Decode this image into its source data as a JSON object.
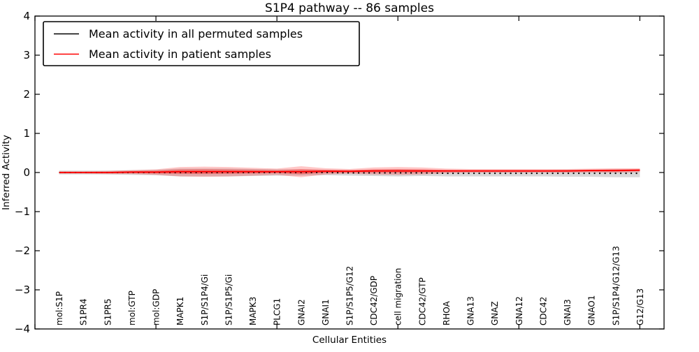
{
  "figure": {
    "background": "#ffffff",
    "accent_red": "#ff0000",
    "accent_black": "#000000"
  },
  "legend": {
    "items": [
      {
        "label": "Mean activity in all permuted samples",
        "color": "#000000",
        "style": "solid"
      },
      {
        "label": "Mean activity in patient samples",
        "color": "#ff0000",
        "style": "solid"
      }
    ],
    "position": "upper left"
  },
  "chart_data": {
    "type": "line",
    "title": "S1P4 pathway -- 86 samples",
    "xlabel": "Cellular Entities",
    "ylabel": "Inferred Activity",
    "xlim": [
      0,
      26
    ],
    "ylim": [
      -4,
      4
    ],
    "ytick_values": [
      4,
      3,
      2,
      1,
      0,
      -1,
      -2,
      -3,
      -4
    ],
    "ytick_labels": [
      "4",
      "3",
      "2",
      "1",
      "0",
      "−1",
      "−2",
      "−3",
      "−4"
    ],
    "xtick_values": [
      0,
      5,
      10,
      15,
      20,
      25
    ],
    "grid": false,
    "legend_position": "upper left",
    "categories": [
      "mol:S1P",
      "S1PR4",
      "S1PR5",
      "mol:GTP",
      "mol:GDP",
      "MAPK1",
      "S1P/S1P4/Gi",
      "S1P/S1P5/Gi",
      "MAPK3",
      "PLCG1",
      "GNAI2",
      "GNAI1",
      "S1P/S1P5/G12",
      "CDC42/GDP",
      "cell migration",
      "CDC42/GTP",
      "RHOA",
      "GNA13",
      "GNAZ",
      "GNA12",
      "CDC42",
      "GNAI3",
      "GNAO1",
      "S1P/S1P4/G12/G13",
      "G12/G13"
    ],
    "series": [
      {
        "name": "Mean activity in all permuted samples",
        "color": "#000000",
        "line_style": "dotted",
        "values": [
          0.0,
          0.0,
          0.0,
          0.0,
          0.0,
          0.0,
          0.0,
          0.0,
          0.0,
          0.0,
          0.0,
          0.0,
          -0.01,
          -0.01,
          -0.01,
          -0.01,
          -0.02,
          -0.02,
          -0.02,
          -0.02,
          -0.02,
          -0.02,
          -0.02,
          -0.02,
          -0.02
        ],
        "band_halfwidth": [
          0.05,
          0.05,
          0.05,
          0.06,
          0.07,
          0.1,
          0.1,
          0.1,
          0.09,
          0.08,
          0.08,
          0.07,
          0.07,
          0.08,
          0.09,
          0.08,
          0.08,
          0.08,
          0.08,
          0.08,
          0.08,
          0.09,
          0.09,
          0.1,
          0.1
        ],
        "band_color": "#999999"
      },
      {
        "name": "Mean activity in patient samples",
        "color": "#ff0000",
        "line_style": "solid",
        "values": [
          0.0,
          0.0,
          0.0,
          0.01,
          0.01,
          0.02,
          0.02,
          0.02,
          0.02,
          0.02,
          0.02,
          0.03,
          0.03,
          0.04,
          0.04,
          0.04,
          0.04,
          0.04,
          0.04,
          0.04,
          0.04,
          0.04,
          0.05,
          0.05,
          0.06
        ],
        "band_halfwidth": [
          0.03,
          0.03,
          0.04,
          0.05,
          0.07,
          0.12,
          0.13,
          0.12,
          0.1,
          0.08,
          0.14,
          0.08,
          0.06,
          0.09,
          0.1,
          0.09,
          0.06,
          0.05,
          0.05,
          0.05,
          0.05,
          0.05,
          0.05,
          0.06,
          0.05
        ],
        "band_color": "#ff0000"
      }
    ]
  }
}
